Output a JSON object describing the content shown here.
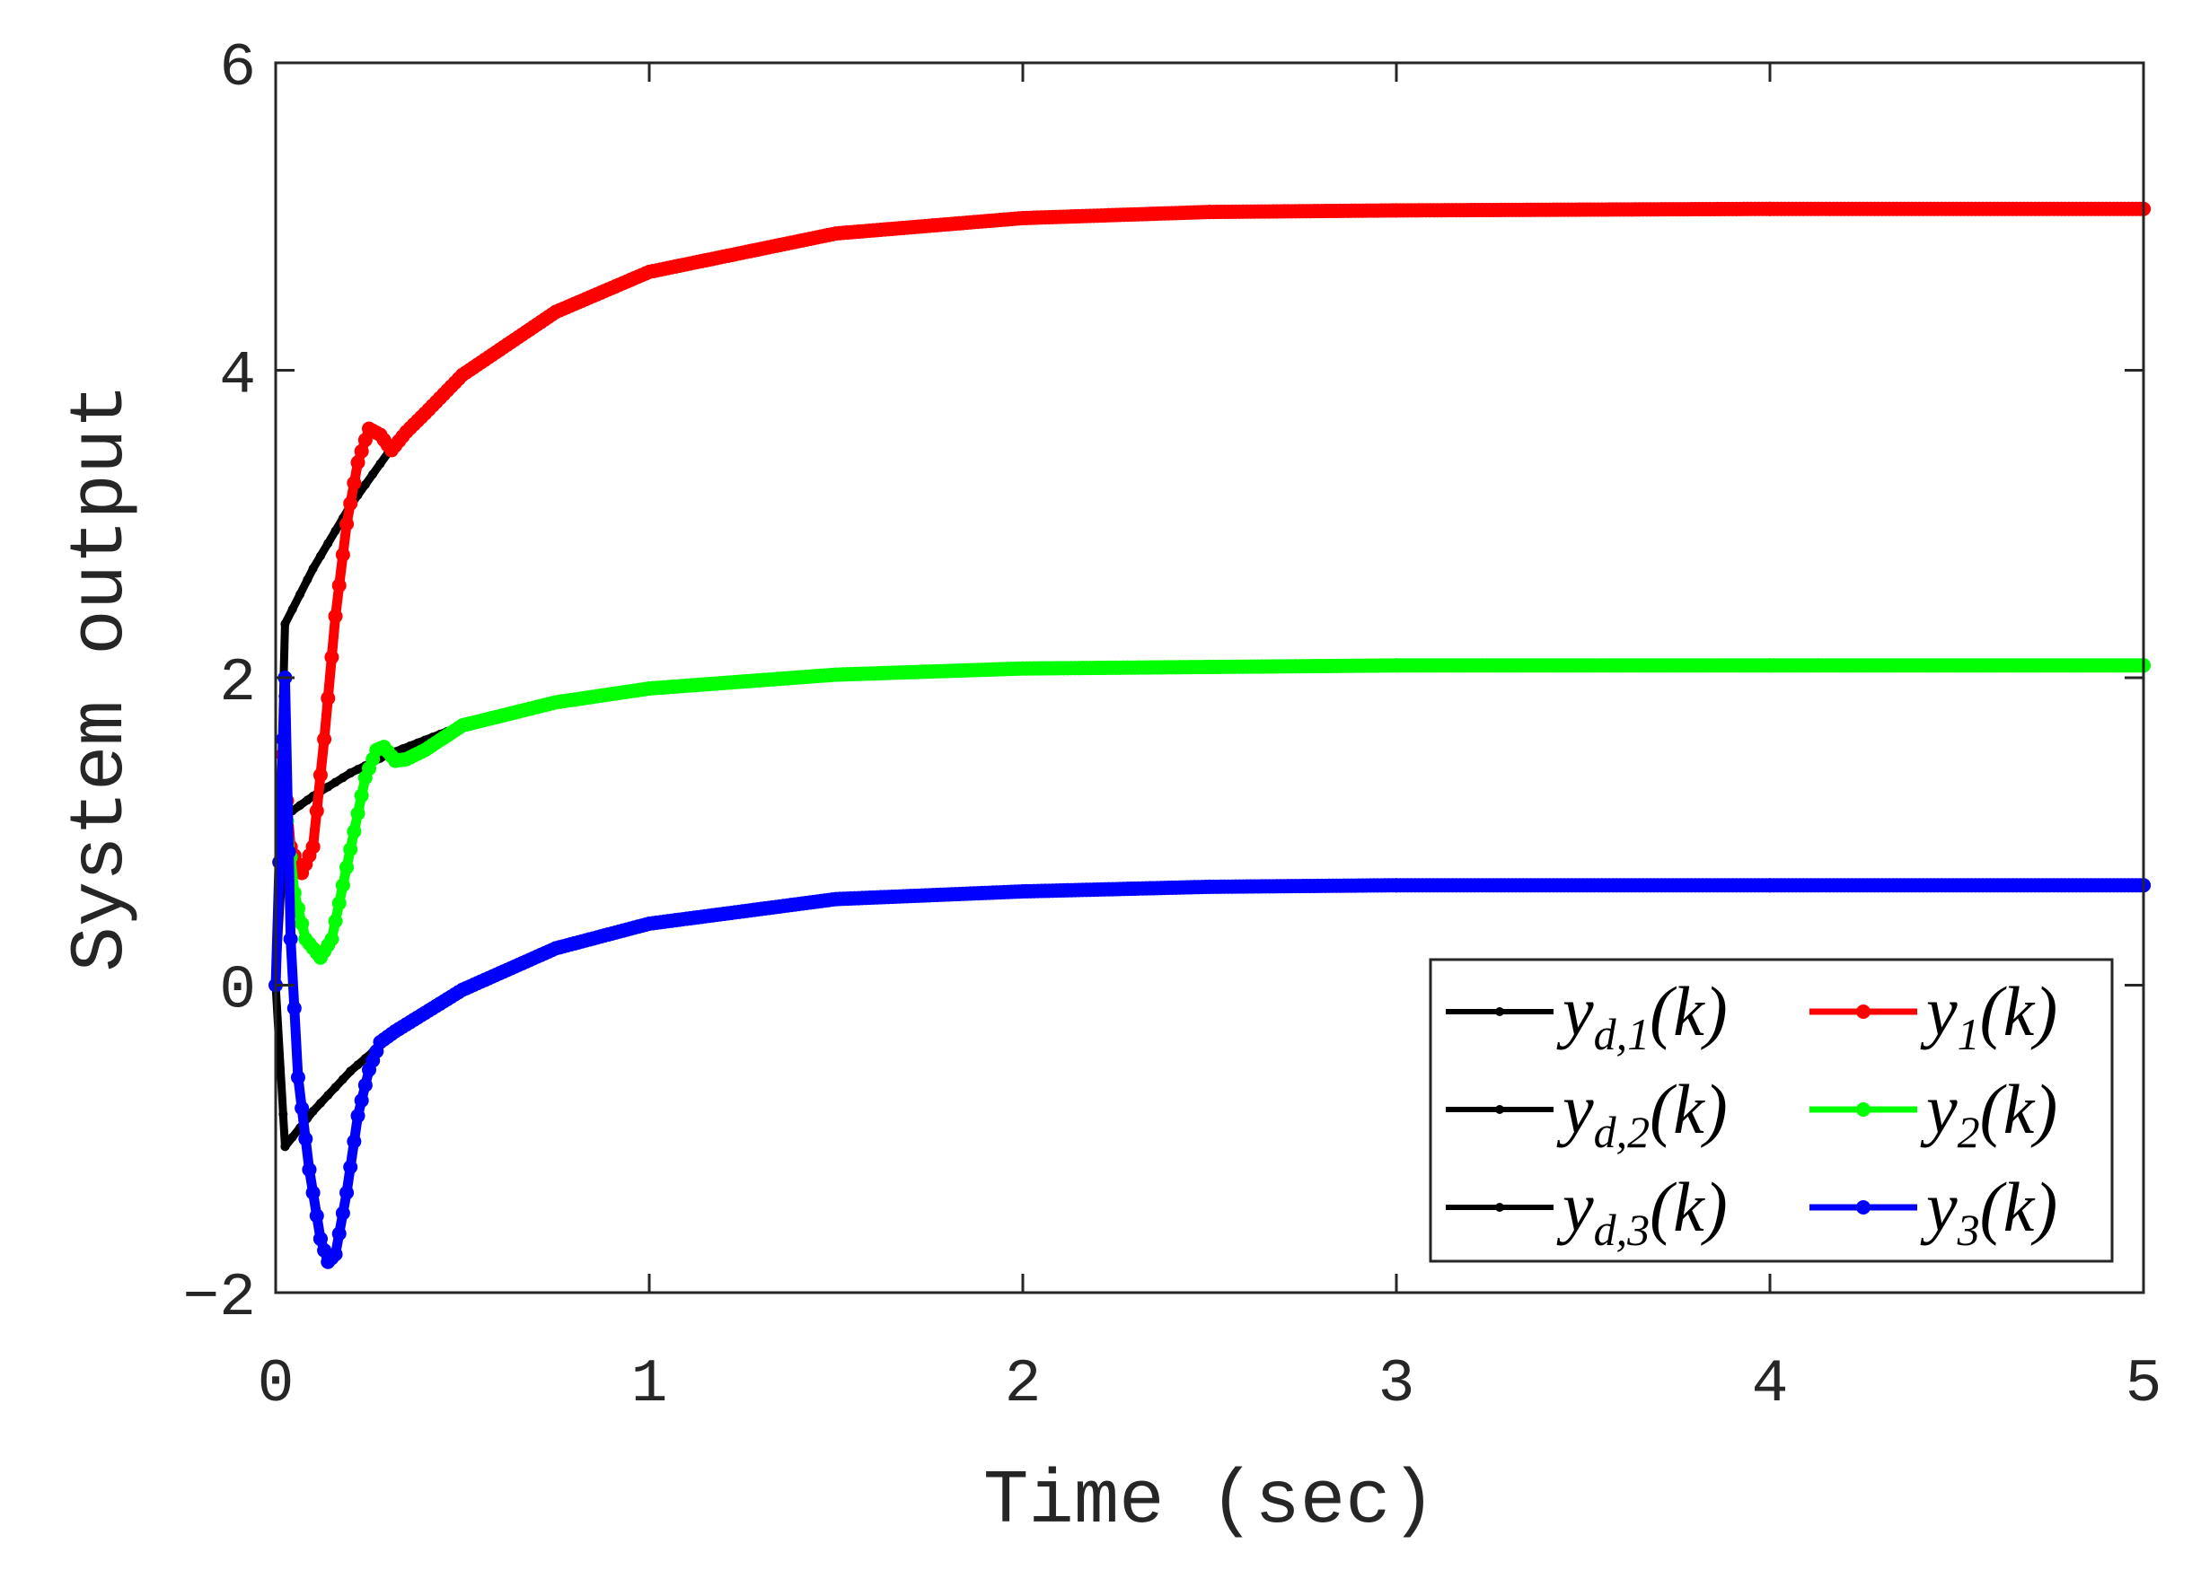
{
  "chart_data": {
    "type": "line",
    "title": "",
    "xlabel": "Time (sec)",
    "ylabel": "System output",
    "xlim": [
      0,
      5
    ],
    "ylim": [
      -2,
      6
    ],
    "xticks": [
      "0",
      "1",
      "2",
      "3",
      "4",
      "5"
    ],
    "yticks": [
      "−2",
      "0",
      "2",
      "4",
      "6"
    ],
    "grid": false,
    "legend_placement": "bottom-right",
    "series": [
      {
        "name": "y_{d,1}(k)",
        "label_main": "y",
        "label_sub": "d,1",
        "label_tail": "(k)",
        "color": "#000000",
        "x": [
          0,
          0.025,
          0.1,
          0.2,
          0.3,
          0.5,
          0.75,
          1,
          1.5,
          2,
          2.5,
          3,
          4,
          5
        ],
        "y": [
          0,
          2.35,
          2.71,
          3.12,
          3.46,
          3.97,
          4.38,
          4.64,
          4.89,
          4.99,
          5.03,
          5.04,
          5.05,
          5.05
        ]
      },
      {
        "name": "y_{d,2}(k)",
        "label_main": "y",
        "label_sub": "d,2",
        "label_tail": "(k)",
        "color": "#000000",
        "x": [
          0,
          0.025,
          0.1,
          0.2,
          0.3,
          0.5,
          0.75,
          1,
          1.5,
          2,
          2.5,
          3,
          4,
          5
        ],
        "y": [
          0,
          1.1,
          1.23,
          1.38,
          1.5,
          1.69,
          1.84,
          1.93,
          2.02,
          2.06,
          2.07,
          2.08,
          2.08,
          2.08
        ]
      },
      {
        "name": "y_{d,3}(k)",
        "label_main": "y",
        "label_sub": "d,3",
        "label_tail": "(k)",
        "color": "#000000",
        "x": [
          0,
          0.025,
          0.1,
          0.2,
          0.3,
          0.5,
          0.75,
          1,
          1.5,
          2,
          2.5,
          3,
          4,
          5
        ],
        "y": [
          0,
          -1.05,
          -0.82,
          -0.56,
          -0.35,
          -0.03,
          0.24,
          0.4,
          0.56,
          0.61,
          0.64,
          0.65,
          0.65,
          0.65
        ]
      },
      {
        "name": "y_1(k)",
        "label_main": "y",
        "label_sub": "1",
        "label_tail": "(k)",
        "color": "#ff0000",
        "x": [
          0.02,
          0.04,
          0.07,
          0.1,
          0.13,
          0.16,
          0.19,
          0.22,
          0.25,
          0.28,
          0.31,
          0.35,
          0.4,
          0.5,
          0.75,
          1,
          1.5,
          2,
          2.5,
          3,
          4,
          5
        ],
        "y": [
          1.5,
          0.9,
          0.73,
          0.9,
          1.6,
          2.4,
          3.0,
          3.4,
          3.62,
          3.58,
          3.48,
          3.6,
          3.72,
          3.97,
          4.38,
          4.64,
          4.89,
          4.99,
          5.03,
          5.04,
          5.05,
          5.05
        ]
      },
      {
        "name": "y_2(k)",
        "label_main": "y",
        "label_sub": "2",
        "label_tail": "(k)",
        "color": "#00ff00",
        "x": [
          0.02,
          0.05,
          0.08,
          0.12,
          0.15,
          0.18,
          0.21,
          0.24,
          0.27,
          0.29,
          0.32,
          0.35,
          0.4,
          0.5,
          0.75,
          1,
          1.5,
          2,
          2.5,
          3,
          4,
          5
        ],
        "y": [
          1.3,
          0.6,
          0.3,
          0.18,
          0.3,
          0.65,
          1.0,
          1.35,
          1.53,
          1.55,
          1.46,
          1.47,
          1.53,
          1.69,
          1.84,
          1.93,
          2.02,
          2.06,
          2.07,
          2.08,
          2.08,
          2.08
        ]
      },
      {
        "name": "y_3(k)",
        "label_main": "y",
        "label_sub": "3",
        "label_tail": "(k)",
        "color": "#0000ff",
        "x": [
          0,
          0.025,
          0.04,
          0.06,
          0.09,
          0.12,
          0.14,
          0.16,
          0.19,
          0.22,
          0.25,
          0.28,
          0.32,
          0.4,
          0.5,
          0.75,
          1,
          1.5,
          2,
          2.5,
          3,
          4,
          5
        ],
        "y": [
          0,
          2.0,
          0.3,
          -0.6,
          -1.2,
          -1.65,
          -1.8,
          -1.75,
          -1.35,
          -0.85,
          -0.55,
          -0.37,
          -0.3,
          -0.18,
          -0.03,
          0.24,
          0.4,
          0.56,
          0.61,
          0.64,
          0.65,
          0.65,
          0.65
        ]
      }
    ]
  }
}
